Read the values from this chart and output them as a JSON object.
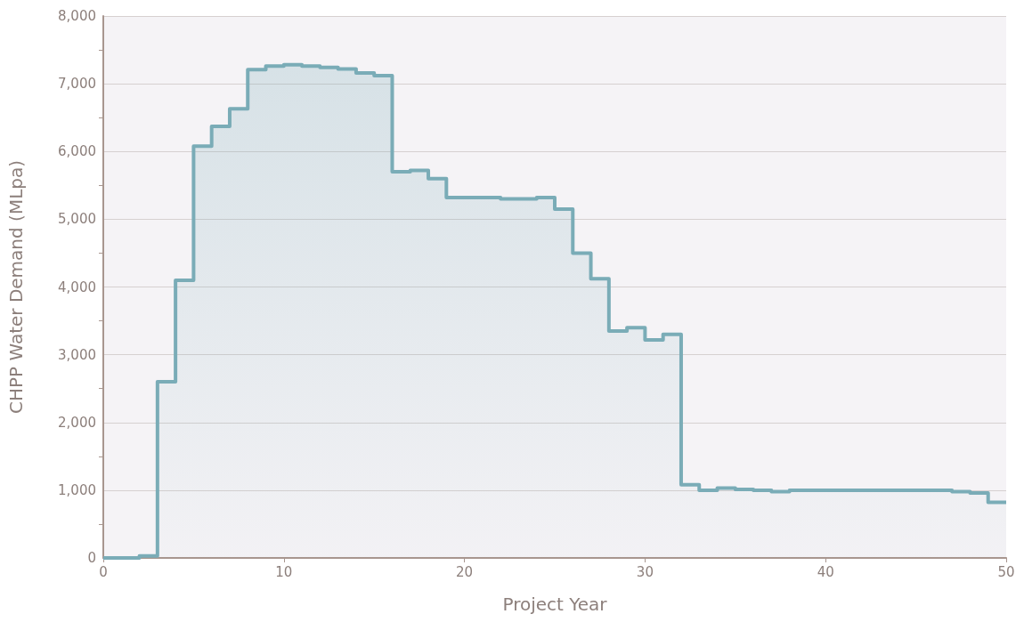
{
  "chart_data": {
    "type": "step",
    "xlabel": "Project Year",
    "ylabel": "CHPP Water Demand (MLpa)",
    "x": [
      0,
      1,
      2,
      3,
      4,
      5,
      6,
      7,
      8,
      9,
      10,
      11,
      12,
      13,
      14,
      15,
      16,
      17,
      18,
      19,
      20,
      21,
      22,
      23,
      24,
      25,
      26,
      27,
      28,
      29,
      30,
      31,
      32,
      33,
      34,
      35,
      36,
      37,
      38,
      39,
      40,
      41,
      42,
      43,
      44,
      45,
      46,
      47,
      48,
      49,
      50
    ],
    "series": [
      {
        "color": "#7aacb7",
        "values": [
          0,
          0,
          30,
          2600,
          4100,
          6080,
          6370,
          6630,
          7210,
          7260,
          7280,
          7260,
          7240,
          7220,
          7160,
          7120,
          5700,
          5720,
          5600,
          5320,
          5320,
          5320,
          5300,
          5300,
          5320,
          5150,
          4500,
          4120,
          3350,
          3400,
          3220,
          3300,
          1080,
          1000,
          1030,
          1010,
          1000,
          980,
          1000,
          1000,
          1000,
          1000,
          1000,
          1000,
          1000,
          1000,
          1000,
          980,
          960,
          820,
          820
        ]
      }
    ],
    "xlim": [
      0,
      50
    ],
    "xticks": [
      0,
      10,
      20,
      30,
      40,
      50
    ],
    "ylim": [
      0,
      8000
    ],
    "yticks": [
      0,
      {
        "value": 1000,
        "label": "1,000"
      },
      {
        "value": 2000,
        "label": "2,000"
      },
      {
        "value": 3000,
        "label": "3,000"
      },
      {
        "value": 4000,
        "label": "4,000"
      },
      {
        "value": 5000,
        "label": "5,000"
      },
      {
        "value": 6000,
        "label": "6,000"
      },
      {
        "value": 7000,
        "label": "7,000"
      },
      {
        "value": 8000,
        "label": "8,000"
      }
    ],
    "grid": "y",
    "marker": "none",
    "line_style": "solid"
  }
}
